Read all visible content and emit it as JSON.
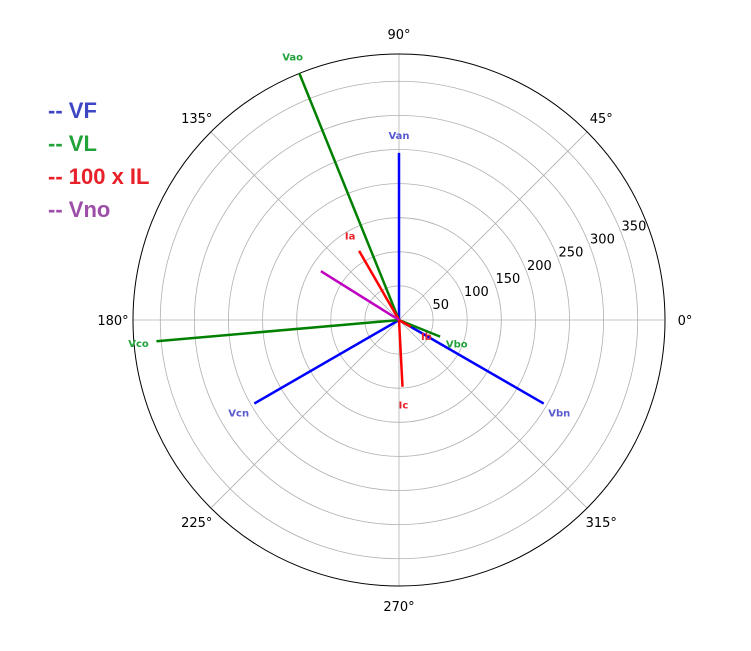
{
  "chart_data": {
    "type": "polar",
    "angle_ticks": [
      "0°",
      "45°",
      "90°",
      "135°",
      "180°",
      "225°",
      "270°",
      "315°"
    ],
    "angle_tick_values": [
      0,
      45,
      90,
      135,
      180,
      225,
      270,
      315
    ],
    "radial_ticks": [
      "50",
      "100",
      "150",
      "200",
      "250",
      "300",
      "350"
    ],
    "radial_tick_values": [
      50,
      100,
      150,
      200,
      250,
      300,
      350
    ],
    "rlim": [
      0,
      390
    ],
    "grid": true,
    "legend": [
      {
        "label": "-- VF",
        "color": "#3d46c4"
      },
      {
        "label": "-- VL",
        "color": "#21a23a"
      },
      {
        "label": "-- 100 x IL",
        "color": "#e8202a"
      },
      {
        "label": "-- Vno",
        "color": "#9d4ea8"
      }
    ],
    "phasors": [
      {
        "label": "Van",
        "group": "VF",
        "magnitude": 245,
        "angle": 90,
        "color": "#0000ff",
        "label_color": "#5a5ad0"
      },
      {
        "label": "Vbn",
        "group": "VF",
        "magnitude": 245,
        "angle": 330,
        "color": "#0000ff",
        "label_color": "#5a5ad0"
      },
      {
        "label": "Vcn",
        "group": "VF",
        "magnitude": 245,
        "angle": 210,
        "color": "#0000ff",
        "label_color": "#5a5ad0"
      },
      {
        "label": "Vao",
        "group": "VL",
        "magnitude": 390,
        "angle": 112,
        "color": "#008000",
        "label_color": "#21a23a"
      },
      {
        "label": "Vbo",
        "group": "VL",
        "magnitude": 65,
        "angle": 338,
        "color": "#008000",
        "label_color": "#21a23a"
      },
      {
        "label": "Vco",
        "group": "VL",
        "magnitude": 357,
        "angle": 185,
        "color": "#008000",
        "label_color": "#21a23a"
      },
      {
        "label": "Ia",
        "group": "100 x IL",
        "magnitude": 117,
        "angle": 120,
        "color": "#ff0000",
        "label_color": "#e8202a"
      },
      {
        "label": "Ib",
        "group": "100 x IL",
        "magnitude": 20,
        "angle": 330,
        "color": "#ff0000",
        "label_color": "#e8202a"
      },
      {
        "label": "Ic",
        "group": "100 x IL",
        "magnitude": 98,
        "angle": 273,
        "color": "#ff0000",
        "label_color": "#e8202a"
      },
      {
        "label": "",
        "group": "Vno",
        "magnitude": 135,
        "angle": 148,
        "color": "#c000c0",
        "label_color": "#9d4ea8"
      }
    ]
  }
}
